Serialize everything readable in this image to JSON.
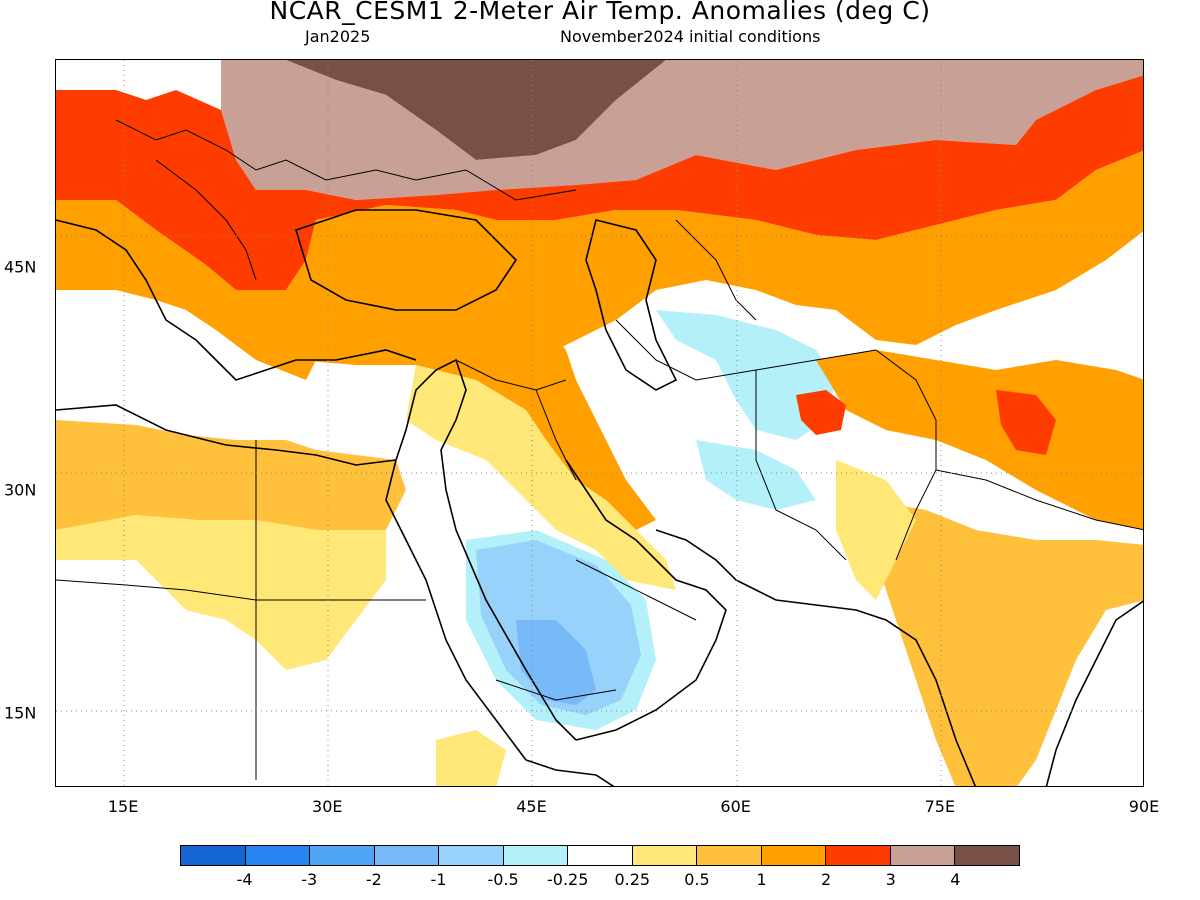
{
  "header": {
    "title": "NCAR_CESM1 2-Meter Air Temp. Anomalies (deg C)",
    "valid_month": "Jan2025",
    "init": "November2024 initial conditions"
  },
  "map": {
    "lon_range": [
      10,
      90
    ],
    "lat_range": [
      10,
      59
    ],
    "x_ticks": [
      {
        "value": 15,
        "label": "15E"
      },
      {
        "value": 30,
        "label": "30E"
      },
      {
        "value": 45,
        "label": "45E"
      },
      {
        "value": 60,
        "label": "60E"
      },
      {
        "value": 75,
        "label": "75E"
      },
      {
        "value": 90,
        "label": "90E"
      }
    ],
    "y_ticks": [
      {
        "value": 15,
        "label": "15N"
      },
      {
        "value": 30,
        "label": "30N"
      },
      {
        "value": 45,
        "label": "45N"
      }
    ],
    "gridlines": "dotted"
  },
  "colorbar": {
    "colors": [
      "#1464d2",
      "#2882f0",
      "#50a5f5",
      "#78b9fa",
      "#96d2fa",
      "#b4f0fa",
      "#ffffff",
      "#ffe878",
      "#ffc03c",
      "#ffa000",
      "#ff3c00",
      "#c8a096",
      "#785046"
    ],
    "labels": [
      "-4",
      "-3",
      "-2",
      "-1",
      "-0.5",
      "-0.25",
      "0.25",
      "0.5",
      "1",
      "2",
      "3",
      "4"
    ]
  }
}
